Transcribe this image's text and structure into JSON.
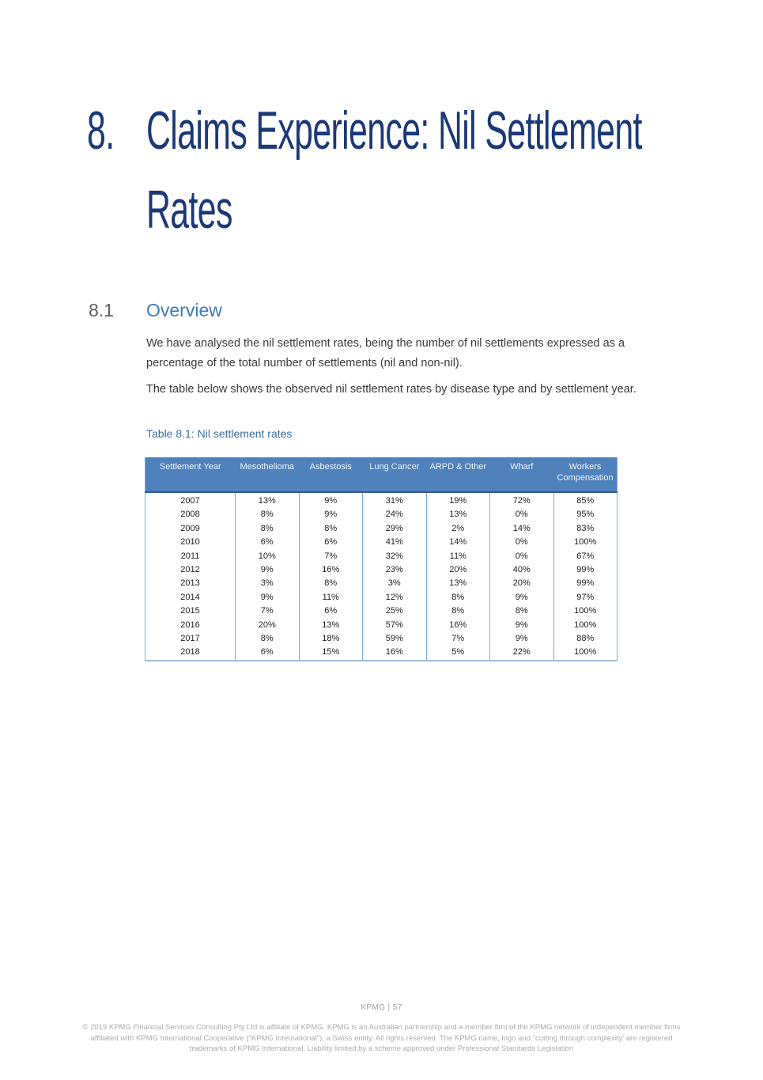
{
  "page": {
    "chapter_number": "8.",
    "chapter_title": "Claims Experience: Nil Settlement Rates",
    "section_number": "8.1",
    "section_title": "Overview",
    "paragraph_1": "We have analysed the nil settlement rates, being the number of nil settlements expressed as a percentage of the total number of settlements (nil and non-nil).",
    "paragraph_2": "The table below shows the observed nil settlement rates by disease type and by settlement year.",
    "table_caption": "Table 8.1: Nil settlement rates"
  },
  "table": {
    "columns": [
      "Settlement Year",
      "Mesothelioma",
      "Asbestosis",
      "Lung Cancer",
      "ARPD & Other",
      "Wharf",
      "Workers Compensation"
    ],
    "rows": [
      [
        "2007",
        "13%",
        "9%",
        "31%",
        "19%",
        "72%",
        "85%"
      ],
      [
        "2008",
        "8%",
        "9%",
        "24%",
        "13%",
        "0%",
        "95%"
      ],
      [
        "2009",
        "8%",
        "8%",
        "29%",
        "2%",
        "14%",
        "83%"
      ],
      [
        "2010",
        "6%",
        "6%",
        "41%",
        "14%",
        "0%",
        "100%"
      ],
      [
        "2011",
        "10%",
        "7%",
        "32%",
        "11%",
        "0%",
        "67%"
      ],
      [
        "2012",
        "9%",
        "16%",
        "23%",
        "20%",
        "40%",
        "99%"
      ],
      [
        "2013",
        "3%",
        "8%",
        "3%",
        "13%",
        "20%",
        "99%"
      ],
      [
        "2014",
        "9%",
        "11%",
        "12%",
        "8%",
        "9%",
        "97%"
      ],
      [
        "2015",
        "7%",
        "6%",
        "25%",
        "8%",
        "8%",
        "100%"
      ],
      [
        "2016",
        "20%",
        "13%",
        "57%",
        "16%",
        "9%",
        "100%"
      ],
      [
        "2017",
        "8%",
        "18%",
        "59%",
        "7%",
        "9%",
        "88%"
      ],
      [
        "2018",
        "6%",
        "15%",
        "16%",
        "5%",
        "22%",
        "100%"
      ]
    ]
  },
  "footer": {
    "page_label": "KPMG  |  57",
    "copyright_lines": [
      "© 2019 KPMG Financial Services Consulting Pty Ltd is affiliate of KPMG. KPMG is an Australian partnership and a member firm of the KPMG network of independent member firms",
      "affiliated with KPMG International Cooperative (\"KPMG International\"), a Swiss entity. All rights reserved. The KPMG name, logo and \"cutting through complexity' are registered",
      "trademarks of KPMG International. Liability limited by a scheme approved under Professional Standards Legislation"
    ]
  },
  "colors": {
    "heading_blue": "#1b3877",
    "section_blue": "#3b7ab8",
    "caption_blue": "#3d6ca1",
    "table_header_bg": "#4f81bd",
    "table_header_rule": "#2f5b8f",
    "table_grid_blue": "#7da7d9",
    "footer_gray": "#ababab"
  }
}
